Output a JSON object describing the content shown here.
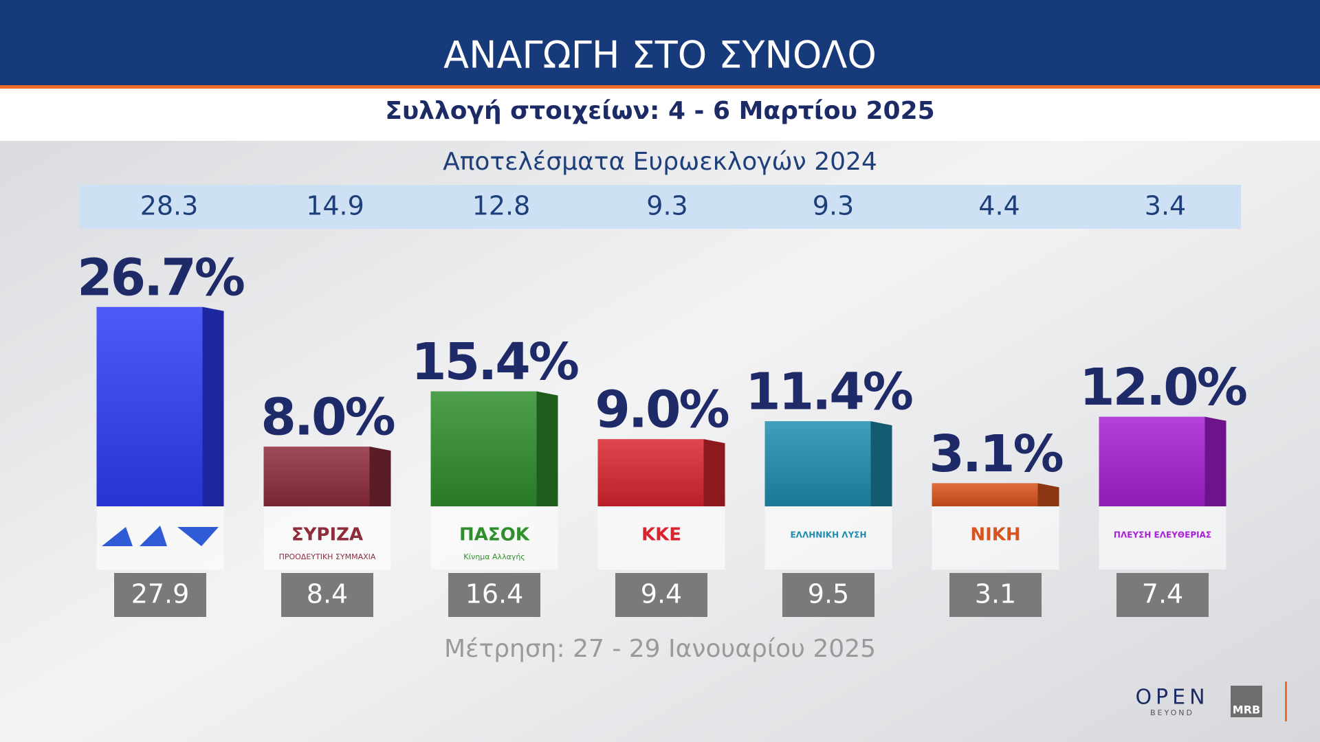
{
  "chart_data": {
    "type": "bar",
    "title": "ΑΝΑΓΩΓΗ ΣΤΟ ΣΥΝΟΛΟ",
    "subtitle": "Συλλογή στοιχείων: 4 - 6 Μαρτίου 2025",
    "categories": [
      null,
      "ΣΥΡΙΖΑ",
      "ΠΑΣΟΚ",
      "ΚΚΕ",
      "ΕΛΛΗΝΙΚΗ ΛΥΣΗ",
      "ΝΙΚΗ",
      "ΠΛΕΥΣΗ ΕΛΕΥΘΕΡΙΑΣ"
    ],
    "category_subtitles": [
      null,
      "ΠΡΟΟΔΕΥΤΙΚΗ ΣΥΜΜΑΧΙΑ",
      "Κίνημα Αλλαγής",
      null,
      null,
      null,
      null
    ],
    "values": [
      26.7,
      8.0,
      15.4,
      9.0,
      11.4,
      3.1,
      12.0
    ],
    "value_labels": [
      "26.7%",
      "8.0%",
      "15.4%",
      "9.0%",
      "11.4%",
      "3.1%",
      "12.0%"
    ],
    "colors": [
      "#2f3cf5",
      "#8e2c3c",
      "#2f8f2c",
      "#d9262e",
      "#1f8db0",
      "#d9531e",
      "#a820d6"
    ],
    "euro_2024": {
      "title": "Αποτελέσματα Ευρωεκλογών 2024",
      "values": [
        28.3,
        14.9,
        12.8,
        9.3,
        9.3,
        4.4,
        3.4
      ]
    },
    "previous": {
      "title": "Μέτρηση: 27 - 29 Ιανουαρίου 2025",
      "values": [
        27.9,
        8.4,
        16.4,
        9.4,
        9.5,
        3.1,
        7.4
      ]
    },
    "logos": {
      "open": "OPEN",
      "beyond": "BEYOND",
      "mrb": "MRB"
    }
  }
}
